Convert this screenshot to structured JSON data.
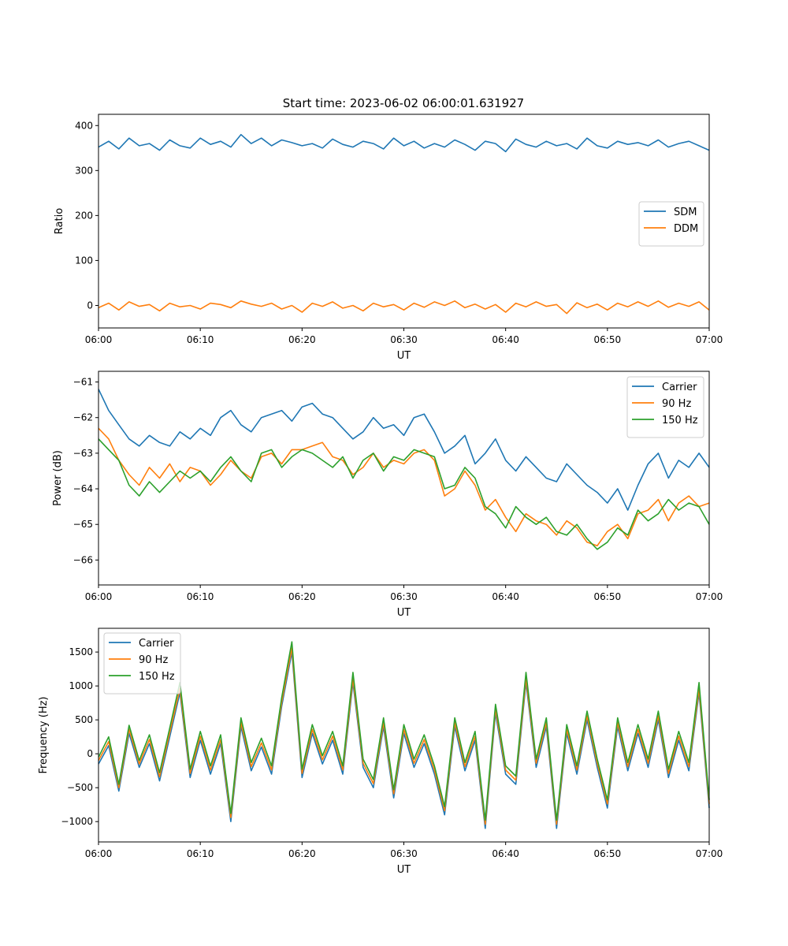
{
  "figure": {
    "title": "Start time: 2023-06-02 06:00:01.631927"
  },
  "colors": {
    "blue": "#1f77b4",
    "orange": "#ff7f0e",
    "green": "#2ca02c"
  },
  "chart_data": [
    {
      "type": "line",
      "title": "Start time: 2023-06-02 06:00:01.631927",
      "xlabel": "UT",
      "ylabel": "Ratio",
      "xlim": [
        "06:00",
        "07:00"
      ],
      "xticks": [
        "06:00",
        "06:10",
        "06:20",
        "06:30",
        "06:40",
        "06:50",
        "07:00"
      ],
      "ylim": [
        -50,
        425
      ],
      "yticks": [
        0,
        100,
        200,
        300,
        400
      ],
      "ytick_labels": [
        "0",
        "100",
        "200",
        "300",
        "400"
      ],
      "legend": "center-right",
      "grid": false,
      "x": [
        "06:00",
        "06:01",
        "06:02",
        "06:03",
        "06:04",
        "06:05",
        "06:06",
        "06:07",
        "06:08",
        "06:09",
        "06:10",
        "06:11",
        "06:12",
        "06:13",
        "06:14",
        "06:15",
        "06:16",
        "06:17",
        "06:18",
        "06:19",
        "06:20",
        "06:21",
        "06:22",
        "06:23",
        "06:24",
        "06:25",
        "06:26",
        "06:27",
        "06:28",
        "06:29",
        "06:30",
        "06:31",
        "06:32",
        "06:33",
        "06:34",
        "06:35",
        "06:36",
        "06:37",
        "06:38",
        "06:39",
        "06:40",
        "06:41",
        "06:42",
        "06:43",
        "06:44",
        "06:45",
        "06:46",
        "06:47",
        "06:48",
        "06:49",
        "06:50",
        "06:51",
        "06:52",
        "06:53",
        "06:54",
        "06:55",
        "06:56",
        "06:57",
        "06:58",
        "06:59",
        "07:00"
      ],
      "series": [
        {
          "name": "SDM",
          "color": "#1f77b4",
          "values": [
            352,
            365,
            348,
            372,
            355,
            360,
            345,
            368,
            355,
            350,
            372,
            358,
            365,
            352,
            380,
            360,
            372,
            355,
            368,
            362,
            355,
            360,
            350,
            370,
            358,
            352,
            365,
            360,
            348,
            372,
            355,
            365,
            350,
            360,
            352,
            368,
            358,
            345,
            365,
            360,
            342,
            370,
            358,
            352,
            365,
            355,
            360,
            348,
            372,
            355,
            350,
            365,
            358,
            362,
            355,
            368,
            352,
            360,
            365,
            355,
            345
          ]
        },
        {
          "name": "DDM",
          "color": "#ff7f0e",
          "values": [
            -5,
            5,
            -10,
            8,
            -2,
            2,
            -12,
            5,
            -3,
            0,
            -8,
            5,
            2,
            -5,
            10,
            3,
            -2,
            5,
            -8,
            0,
            -15,
            5,
            -2,
            8,
            -6,
            0,
            -12,
            5,
            -3,
            2,
            -10,
            5,
            -4,
            8,
            0,
            10,
            -5,
            3,
            -8,
            2,
            -15,
            5,
            -3,
            8,
            -2,
            2,
            -18,
            6,
            -5,
            3,
            -10,
            5,
            -3,
            8,
            -2,
            10,
            -4,
            5,
            -2,
            8,
            -10
          ]
        }
      ]
    },
    {
      "type": "line",
      "xlabel": "UT",
      "ylabel": "Power (dB)",
      "xlim": [
        "06:00",
        "07:00"
      ],
      "xticks": [
        "06:00",
        "06:10",
        "06:20",
        "06:30",
        "06:40",
        "06:50",
        "07:00"
      ],
      "ylim": [
        -66.7,
        -60.7
      ],
      "yticks": [
        -66,
        -65,
        -64,
        -63,
        -62,
        -61
      ],
      "ytick_labels": [
        "−66",
        "−65",
        "−64",
        "−63",
        "−62",
        "−61"
      ],
      "legend": "top-right",
      "grid": false,
      "x": [
        "06:00",
        "06:01",
        "06:02",
        "06:03",
        "06:04",
        "06:05",
        "06:06",
        "06:07",
        "06:08",
        "06:09",
        "06:10",
        "06:11",
        "06:12",
        "06:13",
        "06:14",
        "06:15",
        "06:16",
        "06:17",
        "06:18",
        "06:19",
        "06:20",
        "06:21",
        "06:22",
        "06:23",
        "06:24",
        "06:25",
        "06:26",
        "06:27",
        "06:28",
        "06:29",
        "06:30",
        "06:31",
        "06:32",
        "06:33",
        "06:34",
        "06:35",
        "06:36",
        "06:37",
        "06:38",
        "06:39",
        "06:40",
        "06:41",
        "06:42",
        "06:43",
        "06:44",
        "06:45",
        "06:46",
        "06:47",
        "06:48",
        "06:49",
        "06:50",
        "06:51",
        "06:52",
        "06:53",
        "06:54",
        "06:55",
        "06:56",
        "06:57",
        "06:58",
        "06:59",
        "07:00"
      ],
      "series": [
        {
          "name": "Carrier",
          "color": "#1f77b4",
          "values": [
            -61.2,
            -61.8,
            -62.2,
            -62.6,
            -62.8,
            -62.5,
            -62.7,
            -62.8,
            -62.4,
            -62.6,
            -62.3,
            -62.5,
            -62.0,
            -61.8,
            -62.2,
            -62.4,
            -62.0,
            -61.9,
            -61.8,
            -62.1,
            -61.7,
            -61.6,
            -61.9,
            -62.0,
            -62.3,
            -62.6,
            -62.4,
            -62.0,
            -62.3,
            -62.2,
            -62.5,
            -62.0,
            -61.9,
            -62.4,
            -63.0,
            -62.8,
            -62.5,
            -63.3,
            -63.0,
            -62.6,
            -63.2,
            -63.5,
            -63.1,
            -63.4,
            -63.7,
            -63.8,
            -63.3,
            -63.6,
            -63.9,
            -64.1,
            -64.4,
            -64.0,
            -64.6,
            -63.9,
            -63.3,
            -63.0,
            -63.7,
            -63.2,
            -63.4,
            -63.0,
            -63.4
          ]
        },
        {
          "name": "90 Hz",
          "color": "#ff7f0e",
          "values": [
            -62.3,
            -62.6,
            -63.2,
            -63.6,
            -63.9,
            -63.4,
            -63.7,
            -63.3,
            -63.8,
            -63.4,
            -63.5,
            -63.9,
            -63.6,
            -63.2,
            -63.5,
            -63.7,
            -63.1,
            -63.0,
            -63.3,
            -62.9,
            -62.9,
            -62.8,
            -62.7,
            -63.1,
            -63.2,
            -63.6,
            -63.4,
            -63.0,
            -63.4,
            -63.2,
            -63.3,
            -63.0,
            -62.9,
            -63.2,
            -64.2,
            -64.0,
            -63.5,
            -63.9,
            -64.6,
            -64.3,
            -64.8,
            -65.2,
            -64.7,
            -64.9,
            -65.0,
            -65.3,
            -64.9,
            -65.1,
            -65.5,
            -65.6,
            -65.2,
            -65.0,
            -65.4,
            -64.7,
            -64.6,
            -64.3,
            -64.9,
            -64.4,
            -64.2,
            -64.5,
            -64.4
          ]
        },
        {
          "name": "150 Hz",
          "color": "#2ca02c",
          "values": [
            -62.6,
            -62.9,
            -63.2,
            -63.9,
            -64.2,
            -63.8,
            -64.1,
            -63.8,
            -63.5,
            -63.7,
            -63.5,
            -63.8,
            -63.4,
            -63.1,
            -63.5,
            -63.8,
            -63.0,
            -62.9,
            -63.4,
            -63.1,
            -62.9,
            -63.0,
            -63.2,
            -63.4,
            -63.1,
            -63.7,
            -63.2,
            -63.0,
            -63.5,
            -63.1,
            -63.2,
            -62.9,
            -63.0,
            -63.1,
            -64.0,
            -63.9,
            -63.4,
            -63.7,
            -64.5,
            -64.7,
            -65.1,
            -64.5,
            -64.8,
            -65.0,
            -64.8,
            -65.2,
            -65.3,
            -65.0,
            -65.4,
            -65.7,
            -65.5,
            -65.1,
            -65.3,
            -64.6,
            -64.9,
            -64.7,
            -64.3,
            -64.6,
            -64.4,
            -64.5,
            -65.0
          ]
        }
      ]
    },
    {
      "type": "line",
      "xlabel": "UT",
      "ylabel": "Frequency (Hz)",
      "xlim": [
        "06:00",
        "07:00"
      ],
      "xticks": [
        "06:00",
        "06:10",
        "06:20",
        "06:30",
        "06:40",
        "06:50",
        "07:00"
      ],
      "ylim": [
        -1300,
        1850
      ],
      "yticks": [
        -1000,
        -500,
        0,
        500,
        1000,
        1500
      ],
      "ytick_labels": [
        "−1000",
        "−500",
        "0",
        "500",
        "1000",
        "1500"
      ],
      "legend": "top-left",
      "grid": false,
      "x": [
        "06:00",
        "06:01",
        "06:02",
        "06:03",
        "06:04",
        "06:05",
        "06:06",
        "06:07",
        "06:08",
        "06:09",
        "06:10",
        "06:11",
        "06:12",
        "06:13",
        "06:14",
        "06:15",
        "06:16",
        "06:17",
        "06:18",
        "06:19",
        "06:20",
        "06:21",
        "06:22",
        "06:23",
        "06:24",
        "06:25",
        "06:26",
        "06:27",
        "06:28",
        "06:29",
        "06:30",
        "06:31",
        "06:32",
        "06:33",
        "06:34",
        "06:35",
        "06:36",
        "06:37",
        "06:38",
        "06:39",
        "06:40",
        "06:41",
        "06:42",
        "06:43",
        "06:44",
        "06:45",
        "06:46",
        "06:47",
        "06:48",
        "06:49",
        "06:50",
        "06:51",
        "06:52",
        "06:53",
        "06:54",
        "06:55",
        "06:56",
        "06:57",
        "06:58",
        "06:59",
        "07:00"
      ],
      "series": [
        {
          "name": "Carrier",
          "color": "#1f77b4",
          "values": [
            -150,
            120,
            -550,
            300,
            -200,
            150,
            -400,
            250,
            900,
            -350,
            200,
            -300,
            150,
            -1000,
            400,
            -250,
            100,
            -300,
            700,
            1500,
            -350,
            300,
            -150,
            200,
            -300,
            1050,
            -200,
            -500,
            400,
            -650,
            300,
            -200,
            150,
            -300,
            -900,
            400,
            -250,
            200,
            -1100,
            600,
            -300,
            -450,
            1050,
            -200,
            400,
            -1100,
            300,
            -300,
            500,
            -200,
            -800,
            400,
            -250,
            300,
            -200,
            500,
            -350,
            200,
            -250,
            900,
            -800
          ]
        },
        {
          "name": "90 Hz",
          "color": "#ff7f0e",
          "values": [
            -100,
            180,
            -500,
            360,
            -150,
            210,
            -340,
            310,
            960,
            -290,
            260,
            -240,
            210,
            -940,
            460,
            -190,
            160,
            -240,
            760,
            1560,
            -290,
            360,
            -90,
            260,
            -240,
            1110,
            -140,
            -440,
            460,
            -590,
            360,
            -140,
            210,
            -240,
            -840,
            460,
            -190,
            260,
            -1040,
            660,
            -240,
            -390,
            1110,
            -140,
            460,
            -1040,
            360,
            -240,
            560,
            -140,
            -740,
            460,
            -190,
            360,
            -140,
            560,
            -290,
            260,
            -190,
            960,
            -740
          ]
        },
        {
          "name": "150 Hz",
          "color": "#2ca02c",
          "values": [
            -50,
            250,
            -450,
            420,
            -100,
            280,
            -280,
            380,
            1050,
            -230,
            330,
            -180,
            280,
            -880,
            530,
            -130,
            230,
            -180,
            830,
            1650,
            -230,
            430,
            -30,
            330,
            -180,
            1200,
            -80,
            -380,
            530,
            -530,
            430,
            -80,
            280,
            -180,
            -780,
            530,
            -130,
            330,
            -980,
            730,
            -180,
            -330,
            1200,
            -80,
            530,
            -980,
            430,
            -180,
            630,
            -80,
            -680,
            530,
            -130,
            430,
            -80,
            630,
            -230,
            330,
            -130,
            1050,
            -680
          ]
        }
      ]
    }
  ]
}
